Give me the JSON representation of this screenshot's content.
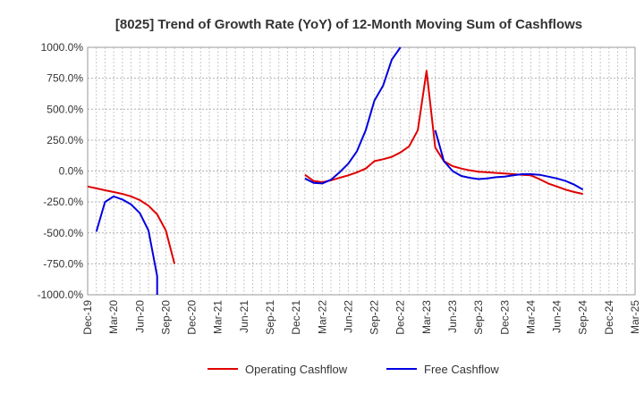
{
  "chart_data": {
    "type": "line",
    "title": "[8025]  Trend of Growth Rate (YoY) of 12-Month Moving Sum of Cashflows",
    "xlabel": "",
    "ylabel": "",
    "ylim": [
      -1000,
      1000
    ],
    "y_ticks": [
      1000,
      750,
      500,
      250,
      0,
      -250,
      -500,
      -750,
      -1000
    ],
    "y_tick_labels": [
      "1000.0%",
      "750.0%",
      "500.0%",
      "250.0%",
      "0.0%",
      "-250.0%",
      "-500.0%",
      "-750.0%",
      "-1000.0%"
    ],
    "x_tick_labels": [
      "Dec-19",
      "Mar-20",
      "Jun-20",
      "Sep-20",
      "Dec-20",
      "Mar-21",
      "Jun-21",
      "Sep-21",
      "Dec-21",
      "Mar-22",
      "Jun-22",
      "Sep-22",
      "Dec-22",
      "Mar-23",
      "Jun-23",
      "Sep-23",
      "Dec-23",
      "Mar-24",
      "Jun-24",
      "Sep-24",
      "Dec-24",
      "Mar-25"
    ],
    "grid": true,
    "legend_position": "bottom",
    "series": [
      {
        "name": "Operating Cashflow",
        "color": "#e00000",
        "x": [
          "2019-12",
          "2020-01",
          "2020-02",
          "2020-03",
          "2020-04",
          "2020-05",
          "2020-06",
          "2020-07",
          "2020-08",
          "2020-09",
          "2020-10",
          "2022-01",
          "2022-02",
          "2022-03",
          "2022-04",
          "2022-05",
          "2022-06",
          "2022-07",
          "2022-08",
          "2022-09",
          "2022-10",
          "2022-11",
          "2022-12",
          "2023-01",
          "2023-02",
          "2023-03",
          "2023-04",
          "2023-05",
          "2023-06",
          "2023-07",
          "2023-08",
          "2023-09",
          "2023-10",
          "2023-11",
          "2023-12",
          "2024-01",
          "2024-02",
          "2024-03",
          "2024-04",
          "2024-05",
          "2024-06",
          "2024-07",
          "2024-08",
          "2024-09"
        ],
        "values": [
          -125,
          -140,
          -155,
          -170,
          -185,
          -205,
          -235,
          -280,
          -350,
          -480,
          -750,
          -30,
          -80,
          -90,
          -75,
          -55,
          -35,
          -10,
          20,
          80,
          95,
          115,
          150,
          200,
          330,
          810,
          190,
          80,
          40,
          20,
          5,
          -5,
          -10,
          -15,
          -20,
          -25,
          -30,
          -35,
          -65,
          -100,
          -125,
          -150,
          -170,
          -185
        ]
      },
      {
        "name": "Free Cashflow",
        "color": "#0000e0",
        "x": [
          "2020-01",
          "2020-02",
          "2020-03",
          "2020-04",
          "2020-05",
          "2020-06",
          "2020-07",
          "2020-08",
          "2020-08",
          "2020-08",
          "2022-01",
          "2022-02",
          "2022-03",
          "2022-04",
          "2022-05",
          "2022-06",
          "2022-07",
          "2022-08",
          "2022-09",
          "2022-10",
          "2022-11",
          "2022-12",
          "2023-04",
          "2023-05",
          "2023-06",
          "2023-07",
          "2023-08",
          "2023-09",
          "2023-10",
          "2023-11",
          "2023-12",
          "2024-01",
          "2024-02",
          "2024-03",
          "2024-04",
          "2024-05",
          "2024-06",
          "2024-07",
          "2024-08",
          "2024-09"
        ],
        "values": [
          -490,
          -250,
          -205,
          -230,
          -270,
          -340,
          -480,
          -850,
          -1000,
          -1000,
          -60,
          -95,
          -100,
          -70,
          -10,
          60,
          160,
          330,
          570,
          690,
          900,
          1000,
          330,
          80,
          0,
          -40,
          -55,
          -65,
          -60,
          -50,
          -45,
          -35,
          -25,
          -25,
          -30,
          -45,
          -60,
          -80,
          -110,
          -150
        ]
      }
    ]
  }
}
